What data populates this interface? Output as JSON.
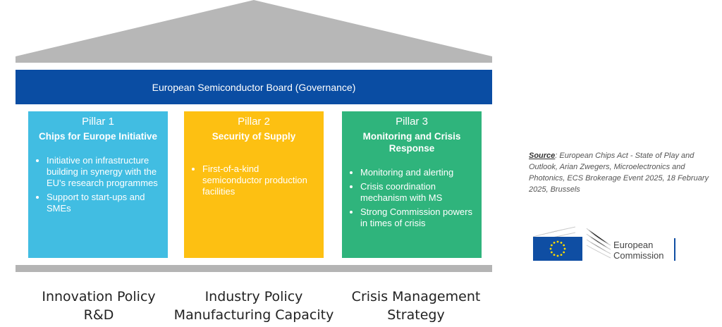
{
  "board": "European Semiconductor Board (Governance)",
  "pillars": [
    {
      "num": "Pillar 1",
      "title": "Chips for Europe Initiative",
      "color": "#41bde2",
      "bullets": [
        "Initiative on infrastructure building in synergy with the EU's research programmes",
        "Support to start-ups and SMEs"
      ]
    },
    {
      "num": "Pillar 2",
      "title": "Security of Supply",
      "color": "#fdc012",
      "bullets": [
        "First-of-a-kind semiconductor production facilities"
      ]
    },
    {
      "num": "Pillar 3",
      "title": "Monitoring and Crisis Response",
      "color": "#2fb47c",
      "bullets": [
        "Monitoring and alerting",
        "Crisis coordination mechanism with MS",
        "Strong Commission powers in times of crisis"
      ]
    }
  ],
  "labels": [
    {
      "l1": "Innovation Policy",
      "l2": "R&D"
    },
    {
      "l1": "Industry Policy",
      "l2": "Manufacturing Capacity"
    },
    {
      "l1": "Crisis Management",
      "l2": "Strategy"
    }
  ],
  "source": {
    "label": "Source",
    "text": ": European Chips Act - State of Play and Outlook, Arian Zwegers, Microelectronics and Photonics, ECS Brokerage Event 2025, 18 February 2025, Brussels"
  },
  "logo": {
    "l1": "European",
    "l2": "Commission"
  }
}
